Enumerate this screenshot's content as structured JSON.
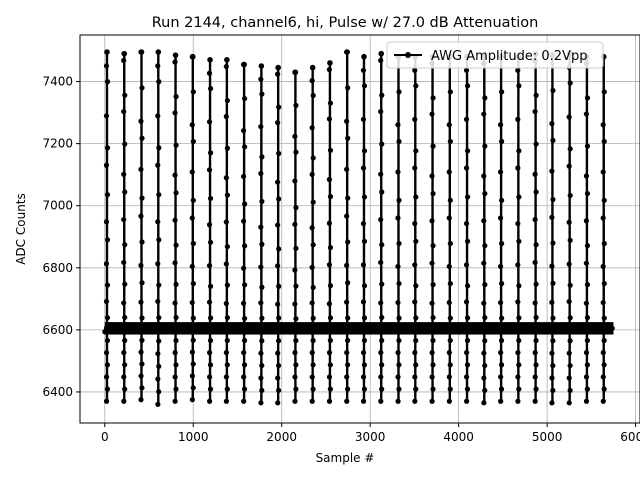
{
  "chart_data": {
    "type": "line",
    "title": "Run 2144, channel6, hi, Pulse w/ 27.0 dB Attenuation",
    "xlabel": "Sample #",
    "ylabel": "ADC Counts",
    "xlim": [
      -280,
      6050
    ],
    "ylim": [
      6300,
      7550
    ],
    "xticks": [
      0,
      1000,
      2000,
      3000,
      4000,
      5000,
      6000
    ],
    "yticks": [
      6400,
      6600,
      6800,
      7000,
      7200,
      7400
    ],
    "grid": true,
    "legend_position": "top-right",
    "series": [
      {
        "name": "AWG Amplitude: 0.2Vpp",
        "color": "#000000",
        "marker": "circle",
        "baseline": 6605,
        "baseline_band": [
          6585,
          6625
        ],
        "x_range": [
          0,
          5750
        ],
        "pulses": [
          {
            "x": 25,
            "peak": 7495,
            "min": 6370
          },
          {
            "x": 220,
            "peak": 7490,
            "min": 6370
          },
          {
            "x": 415,
            "peak": 7495,
            "min": 6375
          },
          {
            "x": 605,
            "peak": 7495,
            "min": 6360
          },
          {
            "x": 800,
            "peak": 7485,
            "min": 6370
          },
          {
            "x": 995,
            "peak": 7480,
            "min": 6375
          },
          {
            "x": 1190,
            "peak": 7470,
            "min": 6370
          },
          {
            "x": 1380,
            "peak": 7470,
            "min": 6370
          },
          {
            "x": 1575,
            "peak": 7455,
            "min": 6370
          },
          {
            "x": 1770,
            "peak": 7450,
            "min": 6365
          },
          {
            "x": 1960,
            "peak": 7445,
            "min": 6365
          },
          {
            "x": 2155,
            "peak": 7430,
            "min": 6370
          },
          {
            "x": 2350,
            "peak": 7445,
            "min": 6370
          },
          {
            "x": 2545,
            "peak": 7460,
            "min": 6370
          },
          {
            "x": 2740,
            "peak": 7495,
            "min": 6370
          },
          {
            "x": 2930,
            "peak": 7480,
            "min": 6370
          },
          {
            "x": 3125,
            "peak": 7490,
            "min": 6370
          },
          {
            "x": 3320,
            "peak": 7480,
            "min": 6370
          },
          {
            "x": 3510,
            "peak": 7480,
            "min": 6370
          },
          {
            "x": 3705,
            "peak": 7480,
            "min": 6370
          },
          {
            "x": 3900,
            "peak": 7480,
            "min": 6370
          },
          {
            "x": 4095,
            "peak": 7480,
            "min": 6370
          },
          {
            "x": 4290,
            "peak": 7480,
            "min": 6365
          },
          {
            "x": 4480,
            "peak": 7480,
            "min": 6370
          },
          {
            "x": 4675,
            "peak": 7480,
            "min": 6370
          },
          {
            "x": 4870,
            "peak": 7490,
            "min": 6370
          },
          {
            "x": 5060,
            "peak": 7485,
            "min": 6365
          },
          {
            "x": 5255,
            "peak": 7490,
            "min": 6365
          },
          {
            "x": 5450,
            "peak": 7480,
            "min": 6370
          },
          {
            "x": 5640,
            "peak": 7480,
            "min": 6370
          }
        ]
      }
    ]
  }
}
